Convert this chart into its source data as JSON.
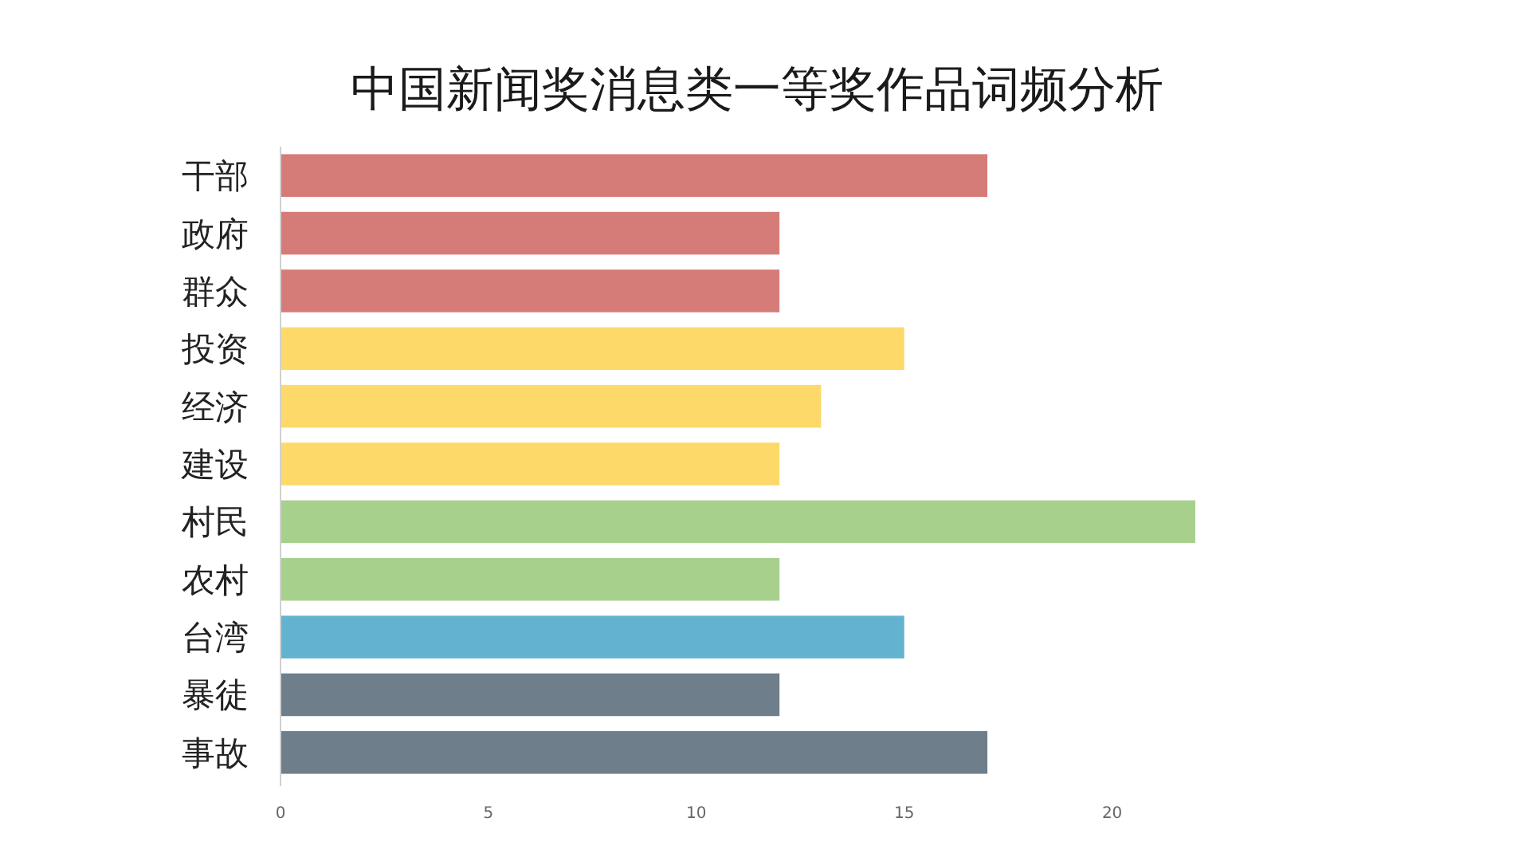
{
  "chart_data": {
    "type": "bar",
    "orientation": "horizontal",
    "title": "中国新闻奖消息类一等奖作品词频分析",
    "categories": [
      "干部",
      "政府",
      "群众",
      "投资",
      "经济",
      "建设",
      "村民",
      "农村",
      "台湾",
      "暴徒",
      "事故"
    ],
    "values": [
      17,
      12,
      12,
      15,
      13,
      12,
      22,
      12,
      15,
      12,
      17
    ],
    "colors": [
      "#d67c78",
      "#d67c78",
      "#d67c78",
      "#fdd96a",
      "#fdd96a",
      "#fdd96a",
      "#a8d08d",
      "#a8d08d",
      "#62b2d0",
      "#6e7f8b",
      "#6e7f8b"
    ],
    "xlim": [
      0,
      22
    ],
    "xticks": [
      0,
      5,
      10,
      15,
      20
    ]
  }
}
